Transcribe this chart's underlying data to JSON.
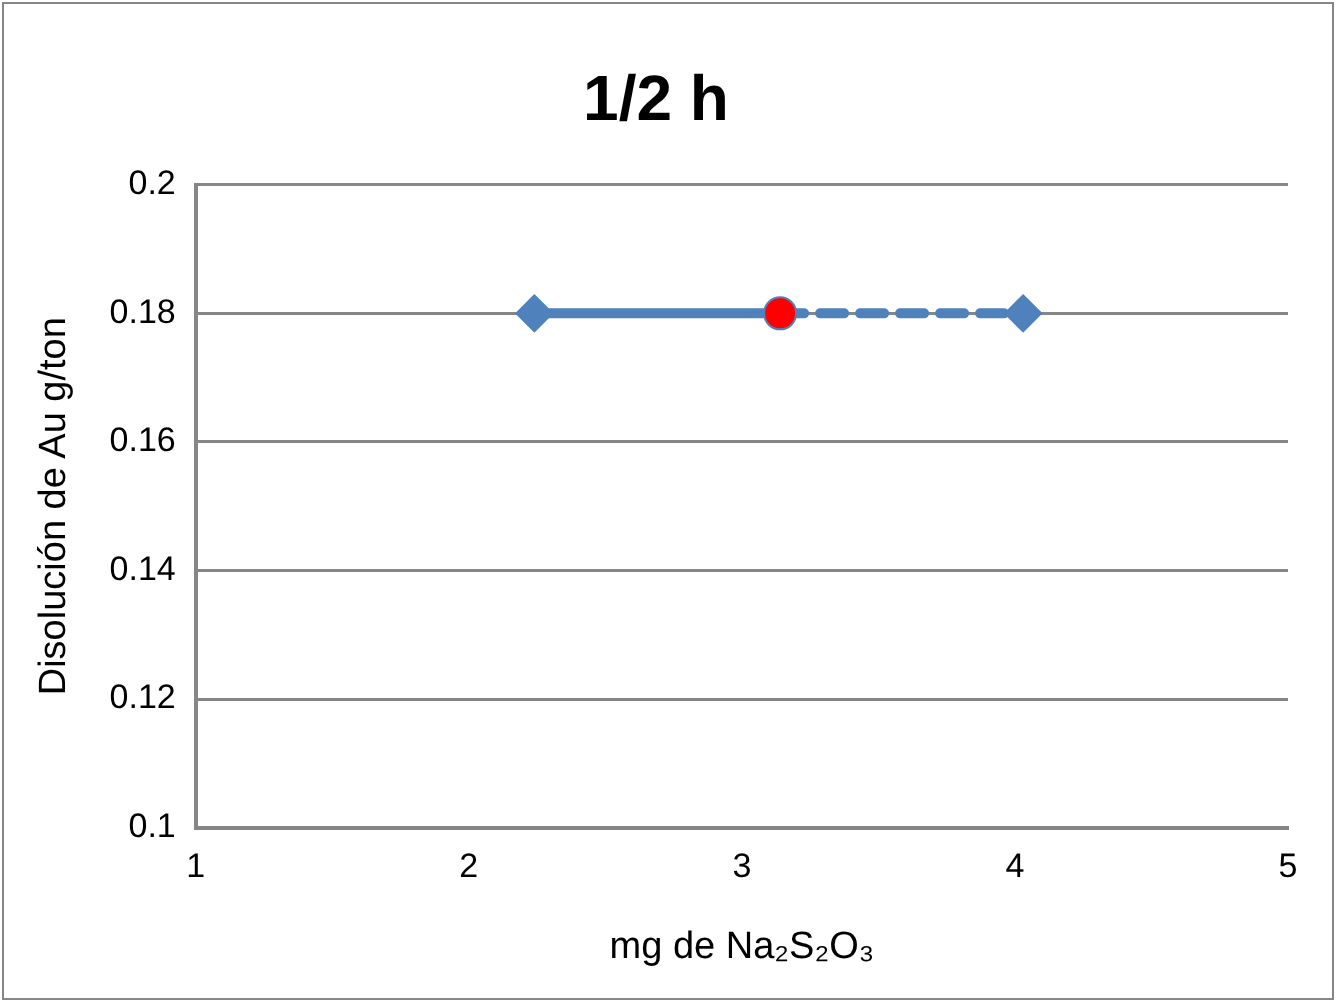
{
  "chart_data": {
    "type": "line",
    "title": "1/2 h",
    "xlabel": "mg de Na₂S₂O₃",
    "ylabel": "Disolución de Au g/ton",
    "xlim": [
      1,
      5
    ],
    "xticks": [
      1,
      2,
      3,
      4,
      5
    ],
    "ylim": [
      0.1,
      0.2
    ],
    "yticks": [
      0.1,
      0.12,
      0.14,
      0.16,
      0.18,
      0.2
    ],
    "grid": "y",
    "legend": false,
    "series": [
      {
        "type": "line",
        "x": [
          2.24,
          3.14
        ],
        "values": [
          0.18,
          0.18
        ],
        "color": "#4f81bd",
        "marker": "none",
        "line_style": "solid"
      },
      {
        "type": "line",
        "x": [
          3.14,
          4.03
        ],
        "values": [
          0.18,
          0.18
        ],
        "color": "#4f81bd",
        "marker": "none",
        "line_style": "dashed"
      },
      {
        "type": "scatter",
        "x": [
          2.24,
          4.03
        ],
        "values": [
          0.18,
          0.18
        ],
        "color": "#4f81bd",
        "marker": "diamond"
      },
      {
        "type": "scatter",
        "x": [
          3.14
        ],
        "values": [
          0.18
        ],
        "color": "#ff0000",
        "marker": "circle"
      }
    ]
  }
}
